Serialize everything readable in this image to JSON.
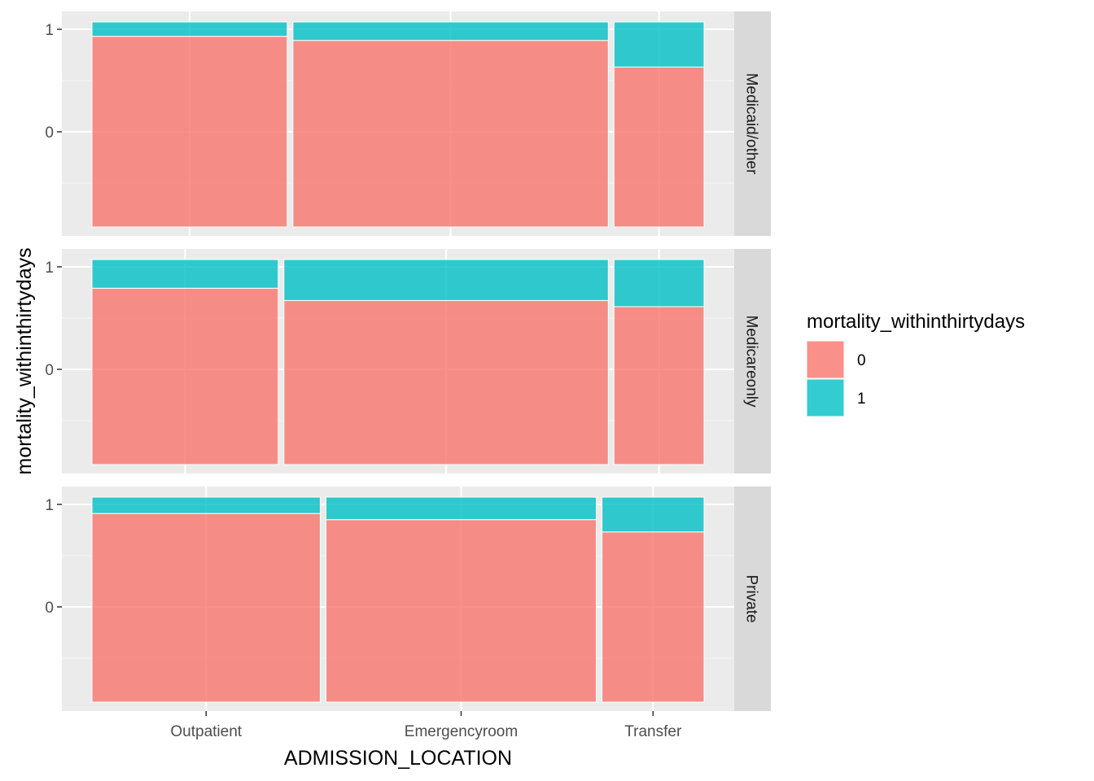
{
  "chart_data": {
    "type": "mosaic",
    "x_label": "ADMISSION_LOCATION",
    "y_label": "mortality_withinthirtydays",
    "categories": [
      "Outpatient",
      "Emergencyroom",
      "Transfer"
    ],
    "y_ticks": [
      "0",
      "1"
    ],
    "grid": true,
    "legend": {
      "title": "mortality_withinthirtydays",
      "position": "right",
      "entries": [
        {
          "label": "0",
          "color": "#F8766D"
        },
        {
          "label": "1",
          "color": "#00BFC4"
        }
      ]
    },
    "panels": [
      {
        "facet": "Medicaid/other",
        "column_widths": [
          0.325,
          0.525,
          0.15
        ],
        "mortality_1_share": [
          0.07,
          0.09,
          0.22
        ]
      },
      {
        "facet": "Medicareonly",
        "column_widths": [
          0.31,
          0.54,
          0.15
        ],
        "mortality_1_share": [
          0.14,
          0.2,
          0.23
        ]
      },
      {
        "facet": "Private",
        "column_widths": [
          0.38,
          0.45,
          0.17
        ],
        "mortality_1_share": [
          0.08,
          0.11,
          0.17
        ]
      }
    ]
  }
}
